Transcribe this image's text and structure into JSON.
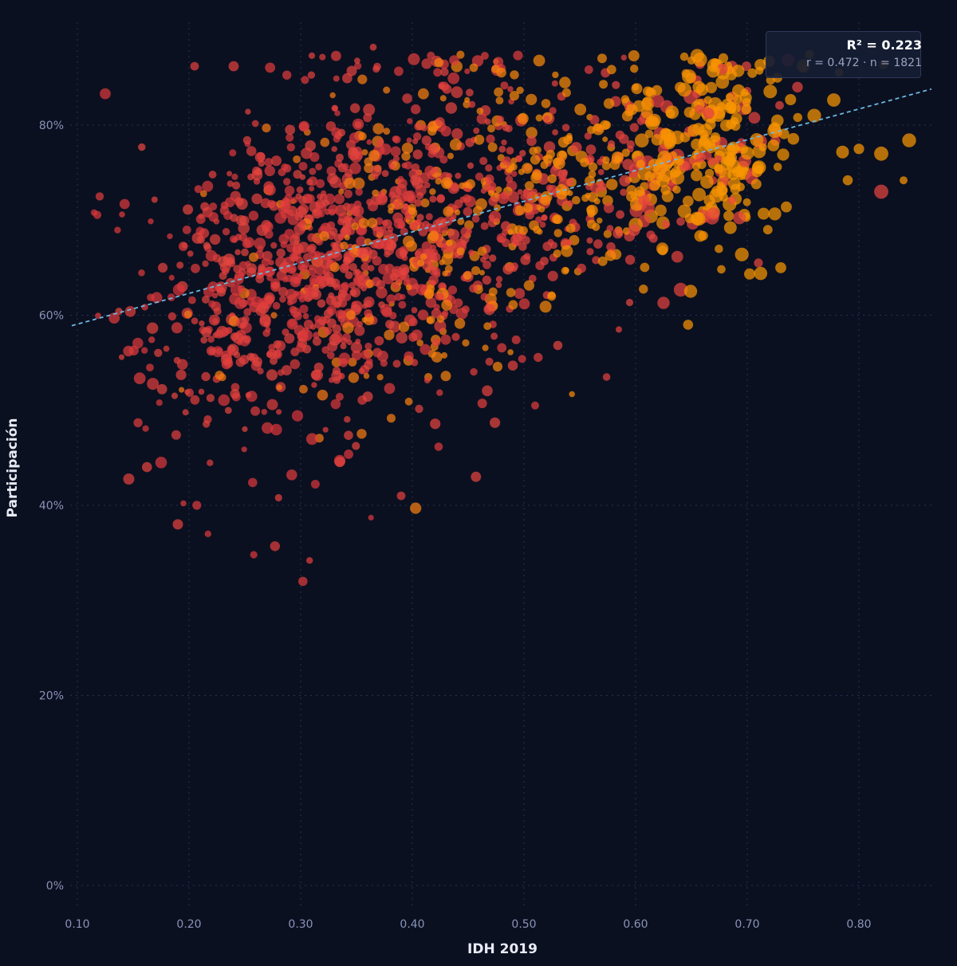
{
  "chart_data": {
    "type": "scatter",
    "title": "",
    "xlabel": "IDH 2019",
    "ylabel": "Participación",
    "xlim": [
      0.095,
      0.865
    ],
    "ylim": [
      -0.03,
      0.9
    ],
    "x_ticks": [
      0.1,
      0.2,
      0.3,
      0.4,
      0.5,
      0.6,
      0.7,
      0.8
    ],
    "x_tick_labels": [
      "0.10",
      "0.20",
      "0.30",
      "0.40",
      "0.50",
      "0.60",
      "0.70",
      "0.80"
    ],
    "y_ticks": [
      0,
      0.2,
      0.4,
      0.6,
      0.8
    ],
    "y_tick_labels": [
      "0%",
      "20%",
      "40%",
      "60%",
      "80%"
    ],
    "grid": true,
    "point_count": 1821,
    "colors": {
      "background": "#0b1020",
      "low": "#e0383a",
      "high": "#ff9500",
      "trend": "#6bb8e0"
    },
    "trend_line": {
      "x": [
        0.095,
        0.865
      ],
      "y": [
        0.589,
        0.838
      ]
    },
    "stats": {
      "r2_label": "R² = 0.223",
      "sub_label": "r = 0.472 · n = 1821"
    },
    "points_sample": [
      {
        "x": 0.125,
        "y": 0.833
      },
      {
        "x": 0.205,
        "y": 0.862
      },
      {
        "x": 0.24,
        "y": 0.862
      },
      {
        "x": 0.365,
        "y": 0.882
      },
      {
        "x": 0.31,
        "y": 0.873
      },
      {
        "x": 0.65,
        "y": 0.868
      },
      {
        "x": 0.745,
        "y": 0.84
      },
      {
        "x": 0.12,
        "y": 0.725
      },
      {
        "x": 0.115,
        "y": 0.708
      },
      {
        "x": 0.14,
        "y": 0.706
      },
      {
        "x": 0.165,
        "y": 0.545
      },
      {
        "x": 0.175,
        "y": 0.445
      },
      {
        "x": 0.195,
        "y": 0.402
      },
      {
        "x": 0.207,
        "y": 0.4
      },
      {
        "x": 0.19,
        "y": 0.38
      },
      {
        "x": 0.217,
        "y": 0.37
      },
      {
        "x": 0.258,
        "y": 0.348
      },
      {
        "x": 0.277,
        "y": 0.357
      },
      {
        "x": 0.302,
        "y": 0.32
      },
      {
        "x": 0.308,
        "y": 0.342
      },
      {
        "x": 0.363,
        "y": 0.387
      },
      {
        "x": 0.39,
        "y": 0.41
      },
      {
        "x": 0.403,
        "y": 0.397
      },
      {
        "x": 0.457,
        "y": 0.43
      },
      {
        "x": 0.335,
        "y": 0.447
      },
      {
        "x": 0.292,
        "y": 0.432
      },
      {
        "x": 0.257,
        "y": 0.424
      },
      {
        "x": 0.71,
        "y": 0.655
      },
      {
        "x": 0.73,
        "y": 0.65
      },
      {
        "x": 0.735,
        "y": 0.714
      },
      {
        "x": 0.79,
        "y": 0.742
      },
      {
        "x": 0.82,
        "y": 0.73
      },
      {
        "x": 0.84,
        "y": 0.742
      },
      {
        "x": 0.845,
        "y": 0.784
      },
      {
        "x": 0.82,
        "y": 0.77
      },
      {
        "x": 0.8,
        "y": 0.775
      },
      {
        "x": 0.76,
        "y": 0.81
      },
      {
        "x": 0.7,
        "y": 0.836
      },
      {
        "x": 0.6,
        "y": 0.84
      },
      {
        "x": 0.573,
        "y": 0.855
      },
      {
        "x": 0.585,
        "y": 0.585
      },
      {
        "x": 0.574,
        "y": 0.535
      },
      {
        "x": 0.647,
        "y": 0.59
      },
      {
        "x": 0.625,
        "y": 0.613
      },
      {
        "x": 0.543,
        "y": 0.517
      },
      {
        "x": 0.51,
        "y": 0.505
      },
      {
        "x": 0.49,
        "y": 0.547
      },
      {
        "x": 0.474,
        "y": 0.487
      },
      {
        "x": 0.43,
        "y": 0.536
      },
      {
        "x": 0.422,
        "y": 0.556
      }
    ]
  }
}
